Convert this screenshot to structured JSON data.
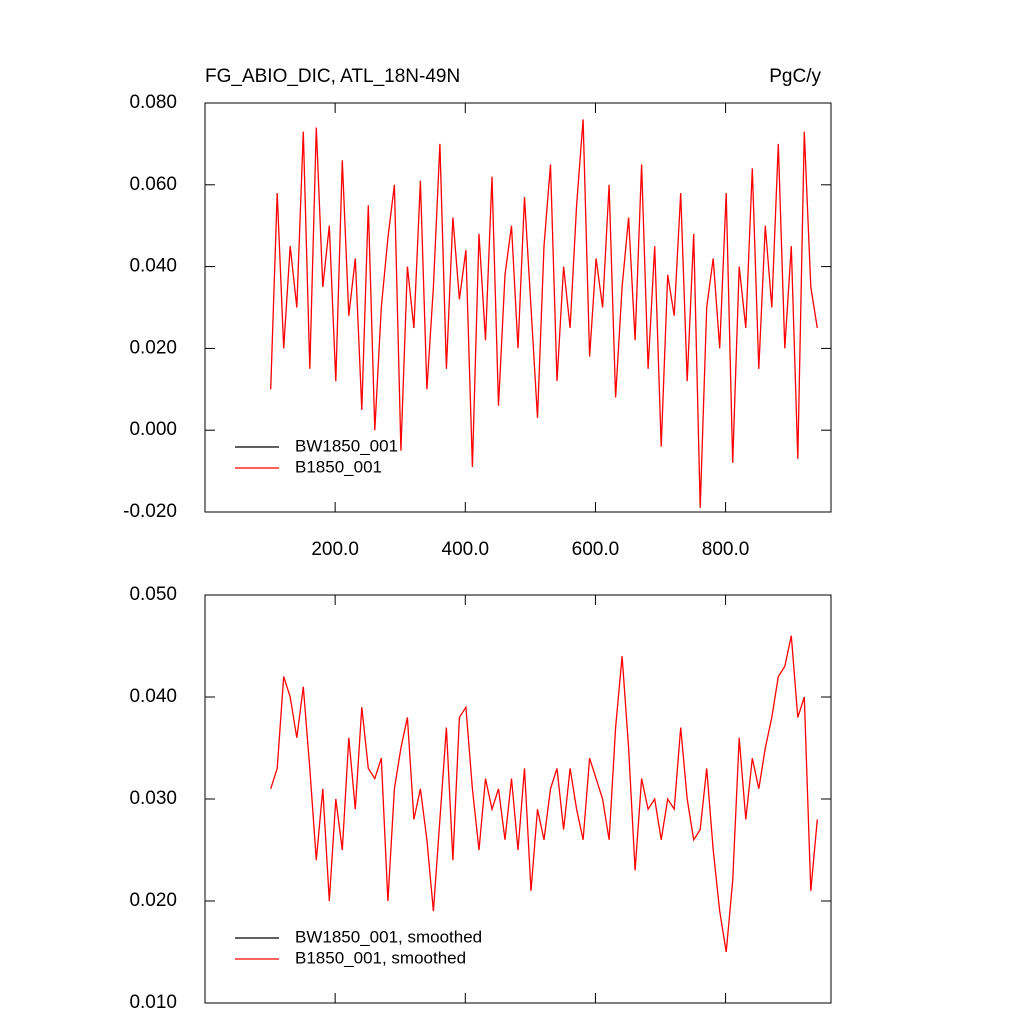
{
  "chart_data": [
    {
      "type": "line",
      "title": "FG_ABIO_DIC, ATL_18N-49N",
      "y_unit": "PgC/y",
      "x": [
        101,
        111,
        121,
        131,
        141,
        151,
        161,
        171,
        181,
        191,
        201,
        211,
        221,
        231,
        241,
        251,
        261,
        271,
        281,
        291,
        301,
        311,
        321,
        331,
        341,
        351,
        361,
        371,
        381,
        391,
        401,
        411,
        421,
        431,
        441,
        451,
        461,
        471,
        481,
        491,
        501,
        511,
        521,
        531,
        541,
        551,
        561,
        571,
        581,
        591,
        601,
        611,
        621,
        631,
        641,
        651,
        661,
        671,
        681,
        691,
        701,
        711,
        721,
        731,
        741,
        751,
        761,
        771,
        781,
        791,
        801,
        811,
        821,
        831,
        841,
        851,
        861,
        871,
        881,
        891,
        901,
        911,
        921,
        931,
        941
      ],
      "series": [
        {
          "name": "BW1850_001",
          "color": "#000000",
          "values": [
            null,
            null,
            null,
            null,
            null,
            null,
            null,
            null,
            null,
            null,
            null,
            null,
            null,
            null,
            null,
            null,
            null,
            null,
            null,
            null,
            null,
            null,
            null,
            null,
            null,
            null,
            null,
            null,
            null,
            null,
            null,
            null,
            null,
            null,
            null,
            null,
            null,
            null,
            null,
            null,
            null,
            null,
            null,
            null,
            null,
            null,
            null,
            null,
            null,
            null,
            null,
            null,
            null,
            null,
            null,
            null,
            null,
            null,
            null,
            null,
            null,
            null,
            null,
            null,
            null,
            null,
            null,
            null,
            null,
            null,
            null,
            null,
            null,
            null,
            null,
            null,
            null,
            null,
            null,
            null,
            null,
            null,
            null,
            null,
            null
          ]
        },
        {
          "name": "B1850_001",
          "color": "#ff0000",
          "values": [
            0.01,
            0.058,
            0.02,
            0.045,
            0.03,
            0.073,
            0.015,
            0.074,
            0.035,
            0.05,
            0.012,
            0.066,
            0.028,
            0.042,
            0.005,
            0.055,
            0.0,
            0.03,
            0.047,
            0.06,
            -0.005,
            0.04,
            0.025,
            0.061,
            0.01,
            0.035,
            0.07,
            0.015,
            0.052,
            0.032,
            0.044,
            -0.009,
            0.048,
            0.022,
            0.062,
            0.006,
            0.038,
            0.05,
            0.02,
            0.057,
            0.03,
            0.003,
            0.045,
            0.065,
            0.012,
            0.04,
            0.025,
            0.055,
            0.076,
            0.018,
            0.042,
            0.03,
            0.06,
            0.008,
            0.035,
            0.052,
            0.022,
            0.065,
            0.015,
            0.045,
            -0.004,
            0.038,
            0.028,
            0.058,
            0.012,
            0.048,
            -0.019,
            0.03,
            0.042,
            0.02,
            0.058,
            -0.008,
            0.04,
            0.025,
            0.064,
            0.015,
            0.05,
            0.03,
            0.07,
            0.02,
            0.045,
            -0.007,
            0.073,
            0.035,
            0.025
          ]
        }
      ],
      "xlim": [
        0,
        962
      ],
      "xticks": [
        {
          "value": 200,
          "label": "200.0"
        },
        {
          "value": 400,
          "label": "400.0"
        },
        {
          "value": 600,
          "label": "600.0"
        },
        {
          "value": 800,
          "label": "800.0"
        }
      ],
      "ylim": [
        -0.02,
        0.08
      ],
      "yticks": [
        {
          "value": -0.02,
          "label": "-0.020"
        },
        {
          "value": 0,
          "label": "0.000"
        },
        {
          "value": 0.02,
          "label": "0.020"
        },
        {
          "value": 0.04,
          "label": "0.040"
        },
        {
          "value": 0.06,
          "label": "0.060"
        },
        {
          "value": 0.08,
          "label": "0.080"
        }
      ],
      "legend": "lower left"
    },
    {
      "type": "line",
      "x": [
        101,
        111,
        121,
        131,
        141,
        151,
        161,
        171,
        181,
        191,
        201,
        211,
        221,
        231,
        241,
        251,
        261,
        271,
        281,
        291,
        301,
        311,
        321,
        331,
        341,
        351,
        361,
        371,
        381,
        391,
        401,
        411,
        421,
        431,
        441,
        451,
        461,
        471,
        481,
        491,
        501,
        511,
        521,
        531,
        541,
        551,
        561,
        571,
        581,
        591,
        601,
        611,
        621,
        631,
        641,
        651,
        661,
        671,
        681,
        691,
        701,
        711,
        721,
        731,
        741,
        751,
        761,
        771,
        781,
        791,
        801,
        811,
        821,
        831,
        841,
        851,
        861,
        871,
        881,
        891,
        901,
        911,
        921,
        931,
        941
      ],
      "series": [
        {
          "name": "BW1850_001, smoothed",
          "color": "#000000",
          "values": [
            null,
            null,
            null,
            null,
            null,
            null,
            null,
            null,
            null,
            null,
            null,
            null,
            null,
            null,
            null,
            null,
            null,
            null,
            null,
            null,
            null,
            null,
            null,
            null,
            null,
            null,
            null,
            null,
            null,
            null,
            null,
            null,
            null,
            null,
            null,
            null,
            null,
            null,
            null,
            null,
            null,
            null,
            null,
            null,
            null,
            null,
            null,
            null,
            null,
            null,
            null,
            null,
            null,
            null,
            null,
            null,
            null,
            null,
            null,
            null,
            null,
            null,
            null,
            null,
            null,
            null,
            null,
            null,
            null,
            null,
            null,
            null,
            null,
            null,
            null,
            null,
            null,
            null,
            null,
            null,
            null,
            null,
            null,
            null,
            null
          ]
        },
        {
          "name": "B1850_001, smoothed",
          "color": "#ff0000",
          "values": [
            0.031,
            0.033,
            0.042,
            0.04,
            0.036,
            0.041,
            0.033,
            0.024,
            0.031,
            0.02,
            0.03,
            0.025,
            0.036,
            0.029,
            0.039,
            0.033,
            0.032,
            0.034,
            0.02,
            0.031,
            0.035,
            0.038,
            0.028,
            0.031,
            0.026,
            0.019,
            0.028,
            0.037,
            0.024,
            0.038,
            0.039,
            0.031,
            0.025,
            0.032,
            0.029,
            0.031,
            0.026,
            0.032,
            0.025,
            0.033,
            0.021,
            0.029,
            0.026,
            0.031,
            0.033,
            0.027,
            0.033,
            0.029,
            0.026,
            0.034,
            0.032,
            0.03,
            0.026,
            0.037,
            0.044,
            0.035,
            0.023,
            0.032,
            0.029,
            0.03,
            0.026,
            0.03,
            0.029,
            0.037,
            0.03,
            0.026,
            0.027,
            0.033,
            0.025,
            0.019,
            0.015,
            0.022,
            0.036,
            0.028,
            0.034,
            0.031,
            0.035,
            0.038,
            0.042,
            0.043,
            0.046,
            0.038,
            0.04,
            0.021,
            0.028
          ]
        }
      ],
      "xlim": [
        0,
        962
      ],
      "xticks": [
        200,
        400,
        600,
        800
      ],
      "xtick_labels": false,
      "ylim": [
        0.01,
        0.05
      ],
      "yticks": [
        {
          "value": 0.01,
          "label": "0.010"
        },
        {
          "value": 0.02,
          "label": "0.020"
        },
        {
          "value": 0.03,
          "label": "0.030"
        },
        {
          "value": 0.04,
          "label": "0.040"
        },
        {
          "value": 0.05,
          "label": "0.050"
        }
      ],
      "legend": "lower left"
    }
  ]
}
